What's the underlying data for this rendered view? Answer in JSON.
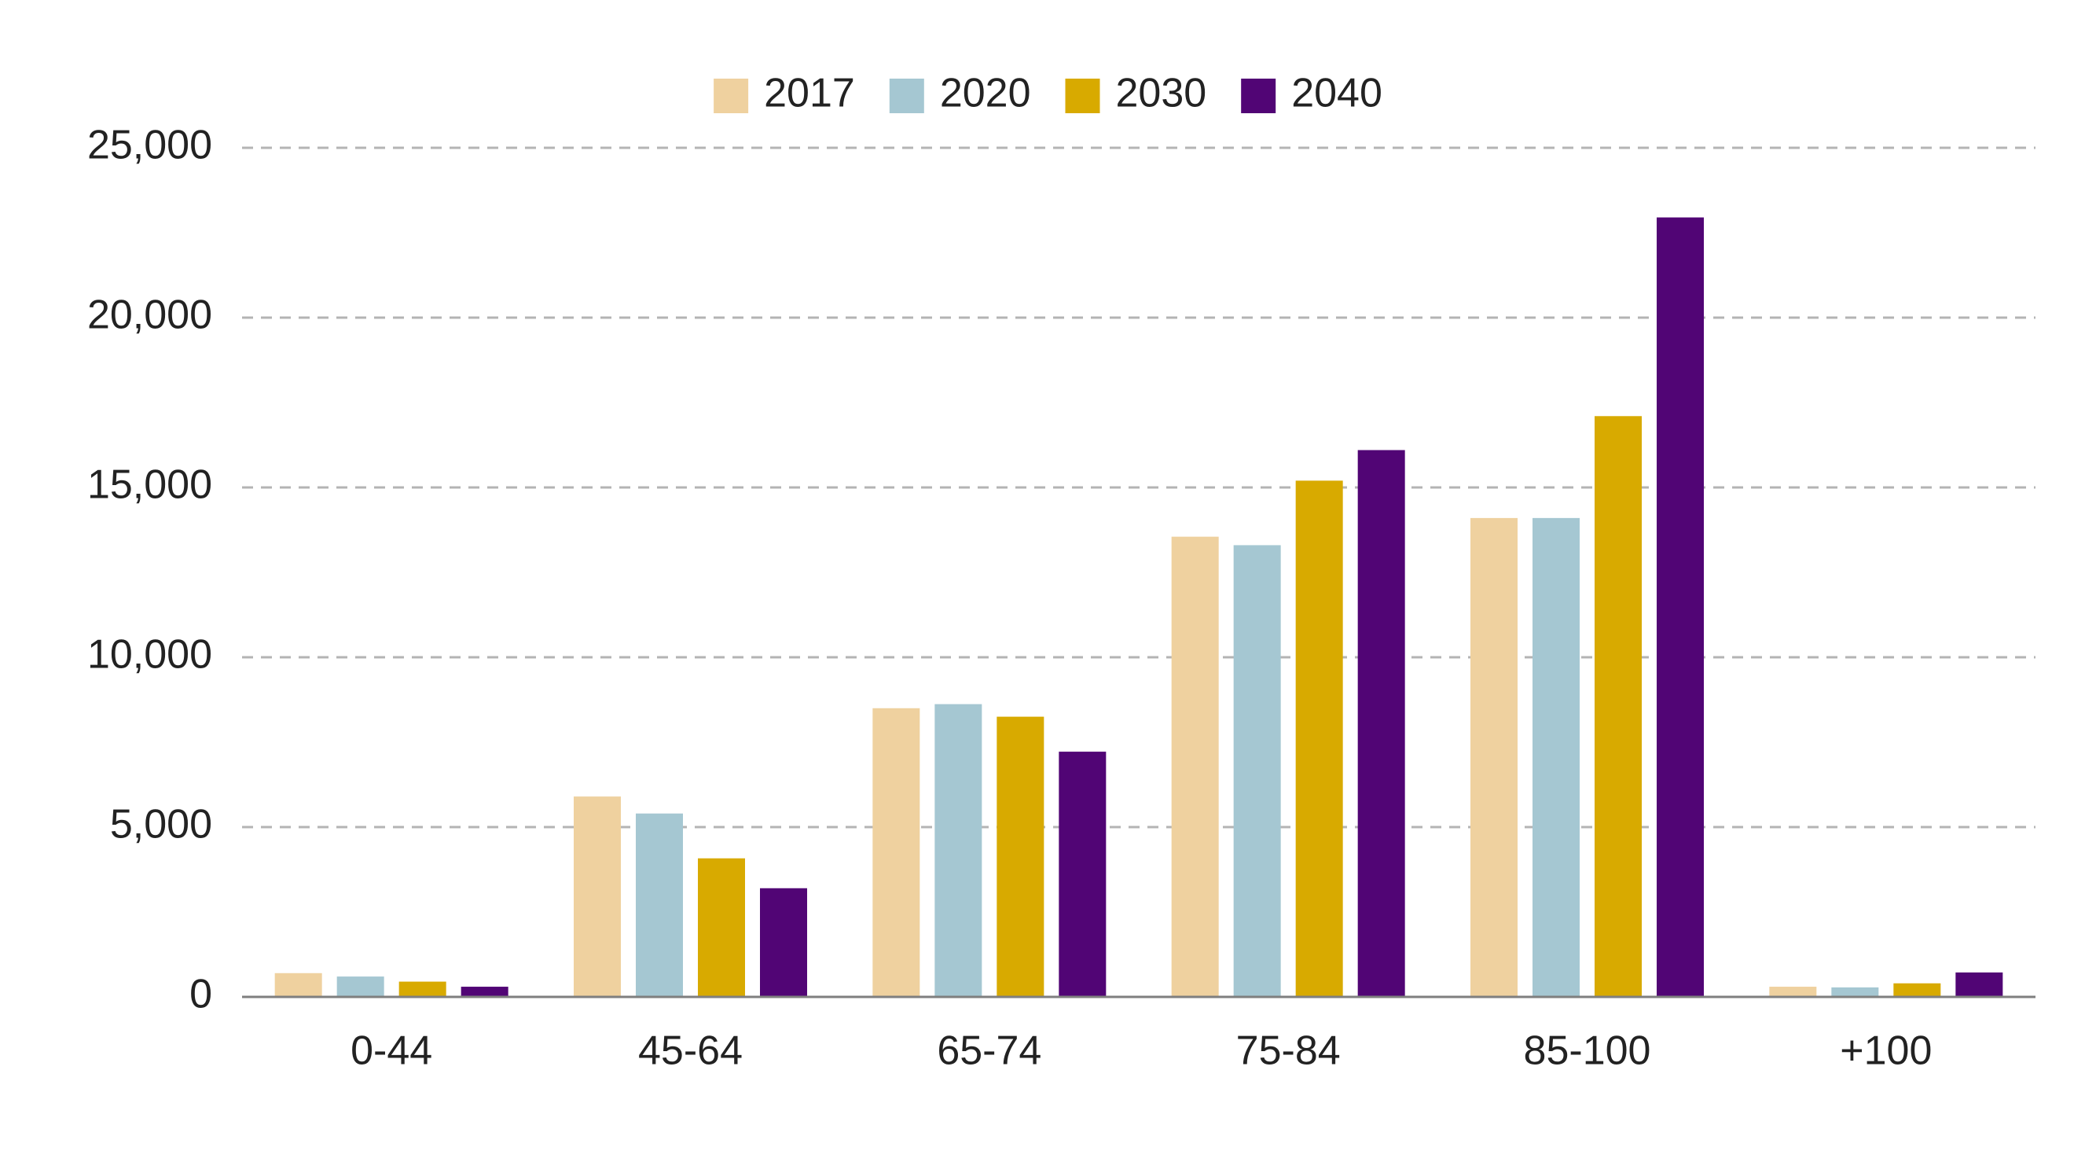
{
  "chart_data": {
    "type": "bar",
    "title": "",
    "xlabel": "",
    "ylabel": "",
    "categories": [
      "0-44",
      "45-64",
      "65-74",
      "75-84",
      "85-100",
      "+100"
    ],
    "series": [
      {
        "name": "2017",
        "color": "#EFD19F",
        "values": [
          700,
          5900,
          8500,
          13550,
          14100,
          300
        ]
      },
      {
        "name": "2020",
        "color": "#A5C7D2",
        "values": [
          600,
          5400,
          8620,
          13300,
          14100,
          280
        ]
      },
      {
        "name": "2030",
        "color": "#D8AA00",
        "values": [
          450,
          4080,
          8250,
          15200,
          17100,
          400
        ]
      },
      {
        "name": "2040",
        "color": "#510575",
        "values": [
          300,
          3200,
          7220,
          16100,
          22950,
          720
        ]
      }
    ],
    "ylim": [
      0,
      25000
    ],
    "y_ticks": [
      0,
      5000,
      10000,
      15000,
      20000,
      25000
    ],
    "y_tick_labels": [
      "0",
      "5,000",
      "10,000",
      "15,000",
      "20,000",
      "25,000"
    ],
    "grid": true,
    "grid_style": "dashed",
    "legend_position": "top-center"
  }
}
